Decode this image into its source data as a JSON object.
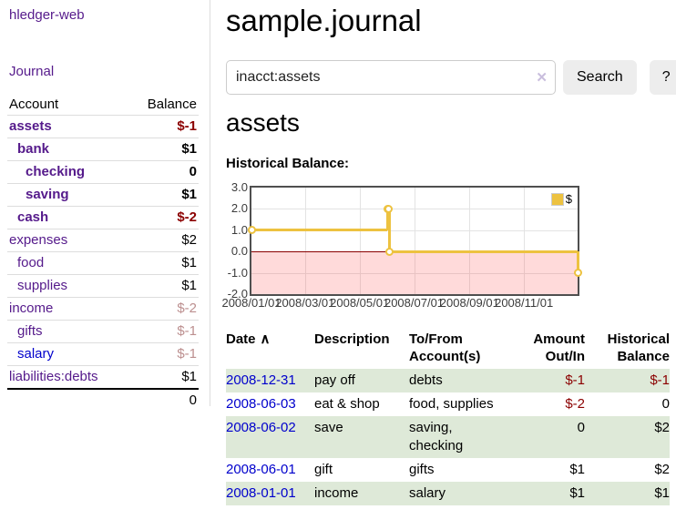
{
  "app": {
    "brand": "hledger-web",
    "journal_label": "Journal"
  },
  "colors": {
    "accent_purple": "#551a8b",
    "link_blue": "#0000cc",
    "negative": "#8b0000",
    "negative_soft": "#bc8f8f",
    "row_border": "#dddddd",
    "stripe_green": "#dee9d8",
    "button_bg": "#ededed"
  },
  "sidebar": {
    "columns": {
      "account": "Account",
      "balance": "Balance"
    },
    "accounts": [
      {
        "name": "assets",
        "indent": 0,
        "in_account": true,
        "balance": "$-1",
        "balance_style": "neg-strong"
      },
      {
        "name": "bank",
        "indent": 1,
        "in_account": true,
        "balance": "$1",
        "balance_style": "pos"
      },
      {
        "name": "checking",
        "indent": 2,
        "in_account": true,
        "balance": "0",
        "balance_style": "pos"
      },
      {
        "name": "saving",
        "indent": 2,
        "in_account": true,
        "balance": "$1",
        "balance_style": "pos"
      },
      {
        "name": "cash",
        "indent": 1,
        "in_account": true,
        "balance": "$-2",
        "balance_style": "neg-strong"
      },
      {
        "name": "expenses",
        "indent": 0,
        "in_account": false,
        "balance": "$2",
        "balance_style": "pos"
      },
      {
        "name": "food",
        "indent": 1,
        "in_account": false,
        "balance": "$1",
        "balance_style": "pos"
      },
      {
        "name": "supplies",
        "indent": 1,
        "in_account": false,
        "balance": "$1",
        "balance_style": "pos"
      },
      {
        "name": "income",
        "indent": 0,
        "in_account": false,
        "balance": "$-2",
        "balance_style": "neg-soft"
      },
      {
        "name": "gifts",
        "indent": 1,
        "in_account": false,
        "balance": "$-1",
        "balance_style": "neg-soft"
      },
      {
        "name": "salary",
        "indent": 1,
        "in_account": false,
        "link_style": "unvisited",
        "balance": "$-1",
        "balance_style": "neg-soft"
      },
      {
        "name": "liabilities:debts",
        "indent": 0,
        "in_account": false,
        "balance": "$1",
        "balance_style": "pos"
      }
    ],
    "total": "0"
  },
  "main": {
    "title": "sample.journal",
    "search": {
      "value": "inacct:assets",
      "clear_label": "✕",
      "search_button": "Search",
      "help_button": "?"
    },
    "account_title": "assets",
    "chart_title": "Historical Balance:"
  },
  "chart_data": {
    "type": "line",
    "step": true,
    "title": "Historical Balance",
    "x": [
      "2008-01-01",
      "2008-06-01",
      "2008-06-02",
      "2008-06-03",
      "2008-12-31"
    ],
    "series": [
      {
        "name": "$",
        "values": [
          1,
          2,
          2,
          0,
          -1
        ]
      }
    ],
    "ylim": [
      -2,
      3
    ],
    "yticks": [
      3,
      2,
      1,
      0,
      -1,
      -2
    ],
    "xtick_labels": [
      "2008/01/01",
      "2008/03/01",
      "2008/05/01",
      "2008/07/01",
      "2008/09/01",
      "2008/11/01"
    ],
    "xlim": [
      "2008-01-01",
      "2008-12-31"
    ],
    "grid": true,
    "legend": [
      {
        "label": "$",
        "color": "#edc240"
      }
    ],
    "legend_position": "top-right",
    "line_color": "#edc240",
    "negative_region_color": "rgba(255,70,70,0.2)",
    "zero_line_color": "#8b0000"
  },
  "register": {
    "sort_icon": "∧",
    "columns": [
      {
        "lines": [
          "Date"
        ],
        "align": "left",
        "sortable": true
      },
      {
        "lines": [
          "Description"
        ],
        "align": "left"
      },
      {
        "lines": [
          "To/From",
          "Account(s)"
        ],
        "align": "left"
      },
      {
        "lines": [
          "Amount",
          "Out/In"
        ],
        "align": "right"
      },
      {
        "lines": [
          "Historical",
          "Balance"
        ],
        "align": "right"
      }
    ],
    "rows": [
      {
        "date": "2008-12-31",
        "description": "pay off",
        "accounts": "debts",
        "amount": "$-1",
        "amount_negative": true,
        "balance": "$-1",
        "balance_negative": true
      },
      {
        "date": "2008-06-03",
        "description": "eat & shop",
        "accounts": "food, supplies",
        "amount": "$-2",
        "amount_negative": true,
        "balance": "0",
        "balance_negative": false
      },
      {
        "date": "2008-06-02",
        "description": "save",
        "accounts": "saving, checking",
        "amount": "0",
        "amount_negative": false,
        "balance": "$2",
        "balance_negative": false
      },
      {
        "date": "2008-06-01",
        "description": "gift",
        "accounts": "gifts",
        "amount": "$1",
        "amount_negative": false,
        "balance": "$2",
        "balance_negative": false
      },
      {
        "date": "2008-01-01",
        "description": "income",
        "accounts": "salary",
        "amount": "$1",
        "amount_negative": false,
        "balance": "$1",
        "balance_negative": false
      }
    ]
  }
}
